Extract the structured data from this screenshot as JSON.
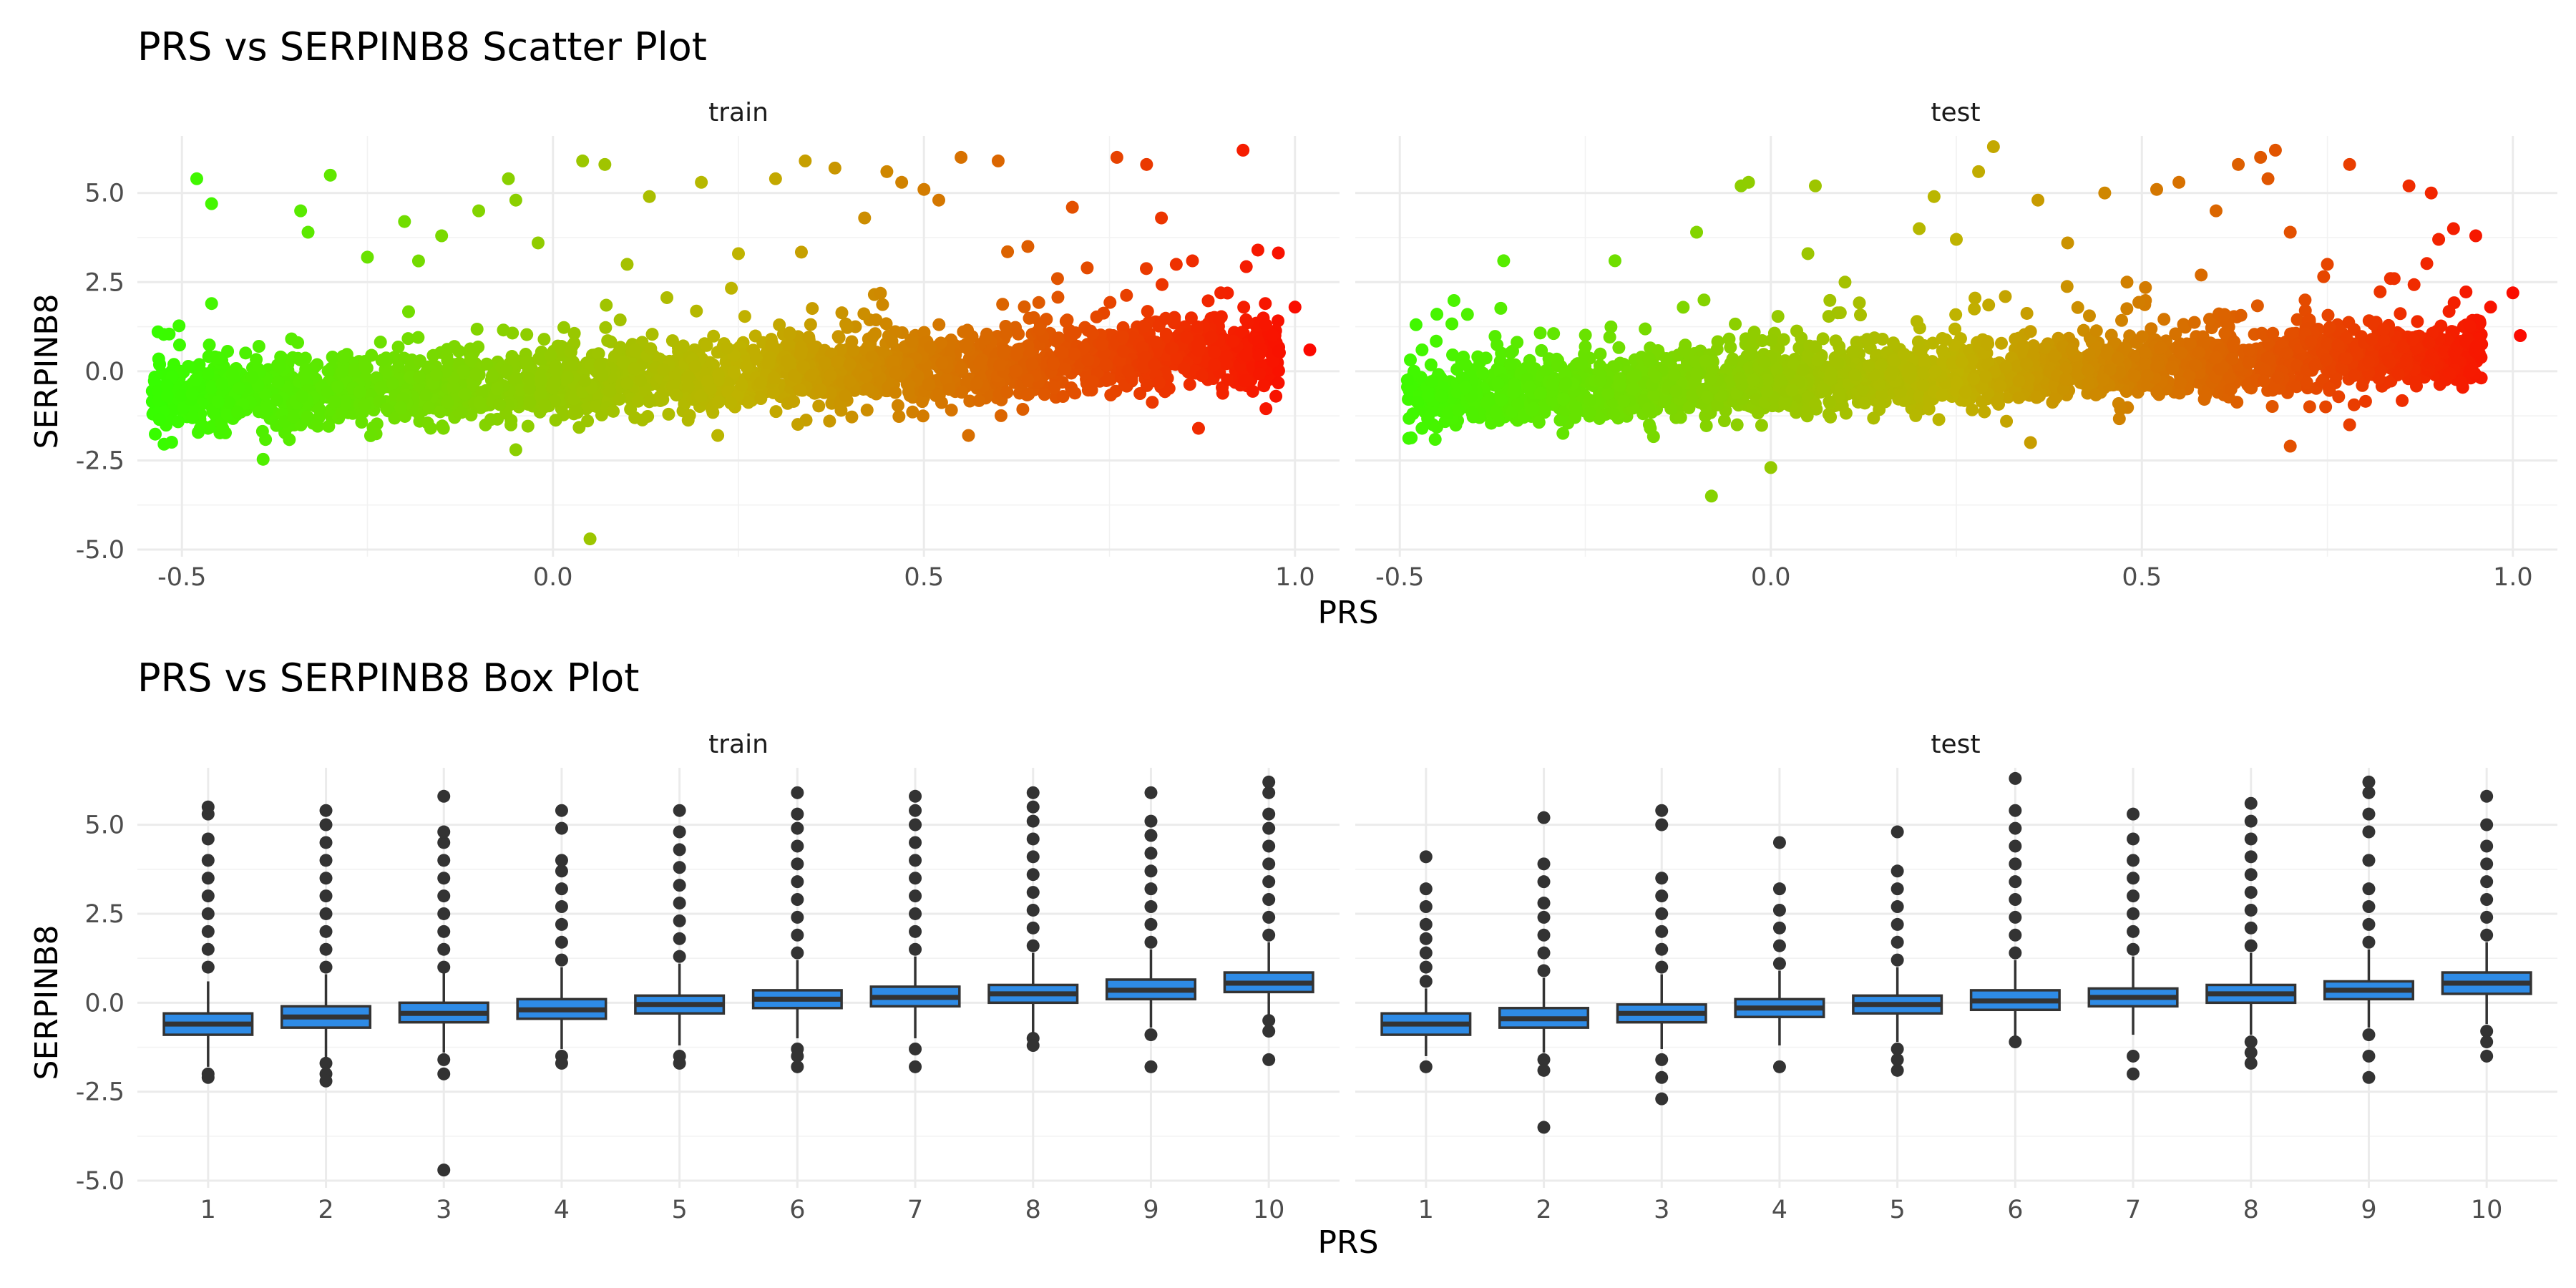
{
  "colors": {
    "low": "#33ff00",
    "mid": "#bfb300",
    "high": "#ff0000",
    "box_fill": "#2e8be6",
    "box_line": "#333333",
    "outlier": "#333333"
  },
  "chart_data": [
    {
      "type": "scatter",
      "title": "PRS vs SERPINB8 Scatter Plot",
      "xlabel": "PRS",
      "ylabel": "SERPINB8",
      "grid": true,
      "legend": "none",
      "color_by": "x",
      "xlim": [
        -0.56,
        1.06
      ],
      "ylim": [
        -5.2,
        6.6
      ],
      "x_ticks": [
        -0.5,
        0.0,
        0.5,
        1.0
      ],
      "x_tick_labels": [
        "-0.5",
        "0.0",
        "0.5",
        "1.0"
      ],
      "y_ticks": [
        -5.0,
        -2.5,
        0.0,
        2.5,
        5.0
      ],
      "y_tick_labels": [
        "-5.0",
        "-2.5",
        "0.0",
        "2.5",
        "5.0"
      ],
      "panels": [
        {
          "strip": "train",
          "cloud": {
            "x_range": [
              -0.54,
              0.98
            ],
            "trend": [
              [
                -0.5,
                -0.75
              ],
              [
                0.0,
                -0.35
              ],
              [
                0.5,
                0.1
              ],
              [
                1.0,
                0.6
              ]
            ],
            "spread": 0.5
          },
          "points": [
            [
              -0.53,
              0.2
            ],
            [
              -0.52,
              -0.4
            ],
            [
              -0.52,
              -0.7
            ],
            [
              -0.48,
              5.4
            ],
            [
              -0.46,
              4.7
            ],
            [
              -0.46,
              1.9
            ],
            [
              -0.34,
              4.5
            ],
            [
              -0.33,
              3.9
            ],
            [
              -0.3,
              5.5
            ],
            [
              -0.25,
              3.2
            ],
            [
              -0.2,
              4.2
            ],
            [
              -0.15,
              3.8
            ],
            [
              -0.1,
              4.5
            ],
            [
              -0.06,
              5.4
            ],
            [
              -0.05,
              4.8
            ],
            [
              -0.05,
              -2.2
            ],
            [
              -0.02,
              3.6
            ],
            [
              0.04,
              5.9
            ],
            [
              0.05,
              -4.7
            ],
            [
              0.07,
              5.8
            ],
            [
              0.1,
              3.0
            ],
            [
              0.13,
              4.9
            ],
            [
              0.2,
              5.3
            ],
            [
              0.25,
              3.3
            ],
            [
              0.3,
              5.4
            ],
            [
              0.34,
              5.9
            ],
            [
              0.38,
              5.7
            ],
            [
              0.42,
              4.3
            ],
            [
              0.45,
              5.6
            ],
            [
              0.47,
              5.3
            ],
            [
              0.5,
              5.1
            ],
            [
              0.52,
              4.8
            ],
            [
              0.55,
              6.0
            ],
            [
              0.56,
              -1.8
            ],
            [
              0.6,
              5.9
            ],
            [
              0.64,
              3.5
            ],
            [
              0.7,
              4.6
            ],
            [
              0.72,
              2.9
            ],
            [
              0.76,
              6.0
            ],
            [
              0.8,
              5.8
            ],
            [
              0.82,
              4.3
            ],
            [
              0.84,
              3.0
            ],
            [
              0.87,
              -1.6
            ],
            [
              0.93,
              6.2
            ],
            [
              0.95,
              3.4
            ],
            [
              0.96,
              1.9
            ],
            [
              1.0,
              1.8
            ],
            [
              1.02,
              0.6
            ],
            [
              0.9,
              2.2
            ],
            [
              0.68,
              2.6
            ]
          ]
        },
        {
          "strip": "test",
          "cloud": {
            "x_range": [
              -0.49,
              0.96
            ],
            "trend": [
              [
                -0.5,
                -0.7
              ],
              [
                0.0,
                -0.3
              ],
              [
                0.5,
                0.15
              ],
              [
                1.0,
                0.6
              ]
            ],
            "spread": 0.45
          },
          "points": [
            [
              -0.47,
              0.6
            ],
            [
              -0.47,
              -1.6
            ],
            [
              -0.45,
              1.6
            ],
            [
              -0.36,
              3.1
            ],
            [
              -0.21,
              3.1
            ],
            [
              -0.1,
              3.9
            ],
            [
              -0.09,
              2.0
            ],
            [
              -0.08,
              -3.5
            ],
            [
              -0.04,
              5.2
            ],
            [
              -0.03,
              5.3
            ],
            [
              0.0,
              -2.7
            ],
            [
              0.05,
              3.3
            ],
            [
              0.06,
              5.2
            ],
            [
              0.1,
              2.5
            ],
            [
              0.2,
              4.0
            ],
            [
              0.22,
              4.9
            ],
            [
              0.25,
              3.7
            ],
            [
              0.28,
              5.6
            ],
            [
              0.3,
              6.3
            ],
            [
              0.35,
              -2.0
            ],
            [
              0.36,
              4.8
            ],
            [
              0.4,
              3.6
            ],
            [
              0.45,
              5.0
            ],
            [
              0.52,
              5.1
            ],
            [
              0.55,
              5.3
            ],
            [
              0.58,
              2.7
            ],
            [
              0.6,
              4.5
            ],
            [
              0.63,
              5.8
            ],
            [
              0.66,
              6.0
            ],
            [
              0.67,
              5.4
            ],
            [
              0.68,
              6.2
            ],
            [
              0.7,
              3.9
            ],
            [
              0.72,
              2.0
            ],
            [
              0.75,
              3.0
            ],
            [
              0.78,
              5.8
            ],
            [
              0.7,
              -2.1
            ],
            [
              0.78,
              -1.5
            ],
            [
              0.86,
              5.2
            ],
            [
              0.89,
              5.0
            ],
            [
              0.9,
              3.7
            ],
            [
              0.92,
              4.0
            ],
            [
              0.95,
              3.8
            ],
            [
              0.97,
              1.8
            ],
            [
              1.0,
              2.2
            ],
            [
              1.01,
              1.0
            ],
            [
              0.93,
              -0.3
            ],
            [
              0.84,
              2.6
            ],
            [
              0.48,
              2.5
            ]
          ]
        }
      ]
    },
    {
      "type": "box",
      "title": "PRS vs SERPINB8 Box Plot",
      "xlabel": "PRS",
      "ylabel": "SERPINB8",
      "grid": true,
      "legend": "none",
      "categories": [
        "1",
        "2",
        "3",
        "4",
        "5",
        "6",
        "7",
        "8",
        "9",
        "10"
      ],
      "ylim": [
        -5.2,
        6.6
      ],
      "y_ticks": [
        -5.0,
        -2.5,
        0.0,
        2.5,
        5.0
      ],
      "y_tick_labels": [
        "-5.0",
        "-2.5",
        "0.0",
        "2.5",
        "5.0"
      ],
      "panels": [
        {
          "strip": "train",
          "series": [
            {
              "category": "1",
              "min": -1.8,
              "q1": -0.9,
              "median": -0.6,
              "q3": -0.3,
              "max": 0.6,
              "outliers": [
                -2.0,
                -2.1,
                1.0,
                1.5,
                2.0,
                2.5,
                3.0,
                3.5,
                4.0,
                4.6,
                5.3,
                5.5
              ]
            },
            {
              "category": "2",
              "min": -1.6,
              "q1": -0.7,
              "median": -0.4,
              "q3": -0.1,
              "max": 0.8,
              "outliers": [
                -1.7,
                -2.0,
                -2.2,
                1.0,
                1.5,
                2.0,
                2.5,
                3.0,
                3.5,
                4.0,
                4.5,
                5.0,
                5.4
              ]
            },
            {
              "category": "3",
              "min": -1.4,
              "q1": -0.55,
              "median": -0.3,
              "q3": 0.0,
              "max": 0.9,
              "outliers": [
                -1.6,
                -2.0,
                -4.7,
                1.0,
                1.5,
                2.0,
                2.5,
                3.0,
                3.5,
                4.0,
                4.5,
                4.8,
                5.8
              ]
            },
            {
              "category": "4",
              "min": -1.3,
              "q1": -0.45,
              "median": -0.2,
              "q3": 0.1,
              "max": 1.0,
              "outliers": [
                -1.5,
                -1.7,
                1.2,
                1.7,
                2.2,
                2.7,
                3.2,
                3.7,
                4.0,
                4.9,
                5.4
              ]
            },
            {
              "category": "5",
              "min": -1.2,
              "q1": -0.3,
              "median": -0.05,
              "q3": 0.2,
              "max": 1.1,
              "outliers": [
                -1.5,
                -1.7,
                1.3,
                1.8,
                2.3,
                2.8,
                3.3,
                3.8,
                4.3,
                4.8,
                5.4
              ]
            },
            {
              "category": "6",
              "min": -1.0,
              "q1": -0.15,
              "median": 0.1,
              "q3": 0.35,
              "max": 1.2,
              "outliers": [
                -1.3,
                -1.5,
                -1.8,
                1.4,
                1.9,
                2.4,
                2.9,
                3.4,
                3.9,
                4.4,
                4.9,
                5.3,
                5.9
              ]
            },
            {
              "category": "7",
              "min": -1.0,
              "q1": -0.1,
              "median": 0.15,
              "q3": 0.45,
              "max": 1.3,
              "outliers": [
                -1.3,
                -1.8,
                1.5,
                2.0,
                2.5,
                3.0,
                3.5,
                4.0,
                4.5,
                5.0,
                5.4,
                5.8
              ]
            },
            {
              "category": "8",
              "min": -0.9,
              "q1": 0.0,
              "median": 0.25,
              "q3": 0.5,
              "max": 1.4,
              "outliers": [
                -1.0,
                -1.2,
                1.6,
                2.1,
                2.6,
                3.1,
                3.6,
                4.1,
                4.6,
                5.1,
                5.5,
                5.9
              ]
            },
            {
              "category": "9",
              "min": -0.7,
              "q1": 0.1,
              "median": 0.35,
              "q3": 0.65,
              "max": 1.5,
              "outliers": [
                -0.9,
                -1.8,
                1.7,
                2.2,
                2.7,
                3.2,
                3.7,
                4.2,
                4.7,
                5.1,
                5.9
              ]
            },
            {
              "category": "10",
              "min": -0.6,
              "q1": 0.3,
              "median": 0.55,
              "q3": 0.85,
              "max": 1.7,
              "outliers": [
                -0.5,
                -0.8,
                -1.6,
                1.9,
                2.4,
                2.9,
                3.4,
                3.9,
                4.4,
                4.9,
                5.3,
                5.9,
                6.2
              ]
            }
          ]
        },
        {
          "strip": "test",
          "series": [
            {
              "category": "1",
              "min": -1.5,
              "q1": -0.9,
              "median": -0.6,
              "q3": -0.3,
              "max": 0.4,
              "outliers": [
                -1.8,
                0.6,
                1.0,
                1.4,
                1.8,
                2.2,
                2.7,
                3.2,
                4.1
              ]
            },
            {
              "category": "2",
              "min": -1.4,
              "q1": -0.7,
              "median": -0.45,
              "q3": -0.15,
              "max": 0.7,
              "outliers": [
                -1.6,
                -1.9,
                -3.5,
                0.9,
                1.4,
                1.9,
                2.4,
                2.8,
                3.4,
                3.9,
                5.2
              ]
            },
            {
              "category": "3",
              "min": -1.3,
              "q1": -0.55,
              "median": -0.3,
              "q3": -0.05,
              "max": 0.8,
              "outliers": [
                -1.6,
                -2.1,
                -2.7,
                1.0,
                1.5,
                2.0,
                2.5,
                3.0,
                3.5,
                5.0,
                5.4
              ]
            },
            {
              "category": "4",
              "min": -1.2,
              "q1": -0.4,
              "median": -0.15,
              "q3": 0.1,
              "max": 0.9,
              "outliers": [
                -1.8,
                1.1,
                1.6,
                2.1,
                2.6,
                3.2,
                4.5
              ]
            },
            {
              "category": "5",
              "min": -1.1,
              "q1": -0.3,
              "median": -0.05,
              "q3": 0.2,
              "max": 1.0,
              "outliers": [
                -1.3,
                -1.6,
                -1.9,
                1.2,
                1.7,
                2.2,
                2.7,
                3.2,
                3.7,
                4.8
              ]
            },
            {
              "category": "6",
              "min": -1.0,
              "q1": -0.2,
              "median": 0.05,
              "q3": 0.35,
              "max": 1.2,
              "outliers": [
                -1.1,
                1.4,
                1.9,
                2.4,
                2.9,
                3.4,
                3.9,
                4.4,
                4.9,
                5.4,
                6.3
              ]
            },
            {
              "category": "7",
              "min": -0.9,
              "q1": -0.1,
              "median": 0.15,
              "q3": 0.4,
              "max": 1.3,
              "outliers": [
                -1.5,
                -2.0,
                1.5,
                2.0,
                2.5,
                3.0,
                3.5,
                4.0,
                4.6,
                5.3
              ]
            },
            {
              "category": "8",
              "min": -0.9,
              "q1": 0.0,
              "median": 0.25,
              "q3": 0.5,
              "max": 1.4,
              "outliers": [
                -1.1,
                -1.4,
                -1.7,
                1.6,
                2.1,
                2.6,
                3.1,
                3.6,
                4.1,
                4.6,
                5.1,
                5.6
              ]
            },
            {
              "category": "9",
              "min": -0.7,
              "q1": 0.1,
              "median": 0.35,
              "q3": 0.6,
              "max": 1.5,
              "outliers": [
                -0.9,
                -1.5,
                -2.1,
                1.7,
                2.2,
                2.7,
                3.2,
                4.0,
                4.8,
                5.3,
                5.9,
                6.2
              ]
            },
            {
              "category": "10",
              "min": -0.6,
              "q1": 0.25,
              "median": 0.55,
              "q3": 0.85,
              "max": 1.7,
              "outliers": [
                -0.8,
                -1.1,
                -1.5,
                1.9,
                2.4,
                2.9,
                3.4,
                3.9,
                4.4,
                5.0,
                5.8
              ]
            }
          ]
        }
      ]
    }
  ]
}
